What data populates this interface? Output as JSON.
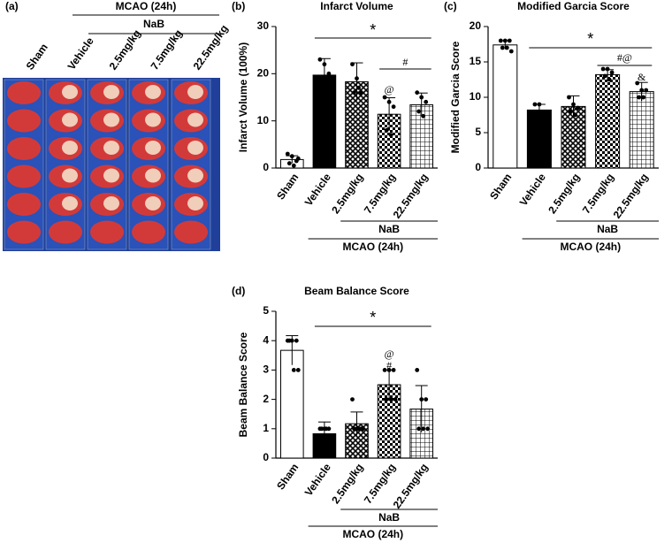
{
  "panel_a": {
    "label": "(a)",
    "mcao": "MCAO (24h)",
    "nab": "NaB",
    "columns": [
      "Sham",
      "Vehicle",
      "2.5mg/kg",
      "7.5mg/kg",
      "22.5mg/kg"
    ]
  },
  "chart_data": [
    {
      "type": "bar",
      "panel": "(b)",
      "title": "Infarct Volume",
      "y_label": "Infarct Volume (100%)",
      "categories": [
        "Sham",
        "Vehicle",
        "2.5mg/kg",
        "7.5mg/kg",
        "22.5mg/kg"
      ],
      "values": [
        1.8,
        19.7,
        18.3,
        11.4,
        13.4
      ],
      "errors": [
        0.8,
        3.5,
        4,
        3.5,
        2.5
      ],
      "points": [
        [
          3,
          2.5,
          1.5,
          1,
          0.5,
          2
        ],
        [
          23,
          22,
          20
        ],
        [
          22,
          19,
          16,
          16,
          17
        ],
        [
          15,
          14,
          13,
          8,
          7
        ],
        [
          16,
          15,
          14,
          12,
          11
        ]
      ],
      "fills": [
        "#ffffff",
        "#000000",
        "url(#pat-diamond)",
        "url(#pat-check)",
        "url(#pat-grid)"
      ],
      "ylim": [
        0,
        30
      ],
      "yticks": [
        0,
        10,
        20,
        30
      ],
      "group_labels": [
        "NaB",
        "MCAO (24h)"
      ],
      "annotations": [
        "*",
        "#",
        "@"
      ]
    },
    {
      "type": "bar",
      "panel": "(c)",
      "title": "Modified Garcia Score",
      "y_label": "Modified Garcia Score",
      "categories": [
        "Sham",
        "Vehicle",
        "2.5mg/kg",
        "7.5mg/kg",
        "22.5mg/kg"
      ],
      "values": [
        17.4,
        8.2,
        8.7,
        13.2,
        10.8
      ],
      "errors": [
        0.6,
        0.8,
        1.5,
        0.7,
        1.3
      ],
      "points": [
        [
          18,
          18,
          18,
          17,
          17,
          16.5
        ],
        [
          9,
          9
        ],
        [
          10,
          9,
          8.5,
          8,
          7.5
        ],
        [
          14,
          14,
          13.5,
          13,
          12.5
        ],
        [
          12,
          11,
          11,
          10,
          10
        ]
      ],
      "fills": [
        "#ffffff",
        "#000000",
        "url(#pat-diamond)",
        "url(#pat-check)",
        "url(#pat-grid)"
      ],
      "ylim": [
        0,
        20
      ],
      "yticks": [
        0,
        5,
        10,
        15,
        20
      ],
      "group_labels": [
        "NaB",
        "MCAO (24h)"
      ],
      "annotations": [
        "*",
        "#@",
        "&"
      ]
    },
    {
      "type": "bar",
      "panel": "(d)",
      "title": "Beam Balance Score",
      "y_label": "Beam Balance Score",
      "categories": [
        "Sham",
        "Vehicle",
        "2.5mg/kg",
        "7.5mg/kg",
        "22.5mg/kg"
      ],
      "values": [
        3.67,
        0.83,
        1.17,
        2.5,
        1.67
      ],
      "errors": [
        0.5,
        0.4,
        0.4,
        0.5,
        0.8
      ],
      "points": [
        [
          4,
          4,
          4,
          4,
          3,
          3
        ],
        [
          1,
          1,
          1,
          1,
          1
        ],
        [
          2,
          1,
          1,
          1,
          1,
          1
        ],
        [
          3,
          3,
          3,
          2,
          2,
          2
        ],
        [
          3,
          2,
          2,
          1,
          1,
          1
        ]
      ],
      "fills": [
        "#ffffff",
        "#000000",
        "url(#pat-diamond)",
        "url(#pat-check)",
        "url(#pat-grid)"
      ],
      "ylim": [
        0,
        5
      ],
      "yticks": [
        0,
        1,
        2,
        3,
        4,
        5
      ],
      "group_labels": [
        "NaB",
        "MCAO (24h)"
      ],
      "annotations": [
        "*",
        "@",
        "#"
      ]
    }
  ]
}
